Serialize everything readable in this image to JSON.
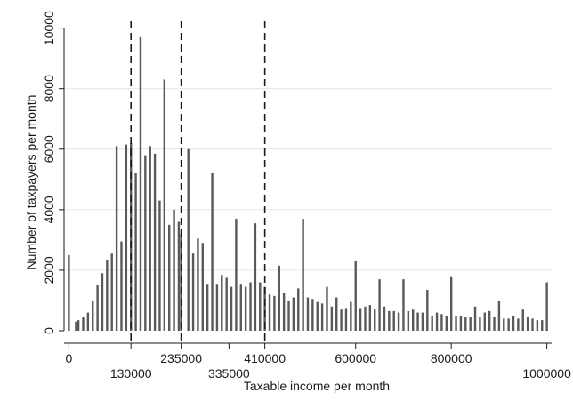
{
  "chart_data": {
    "type": "bar",
    "xlabel": "Taxable income per month",
    "ylabel": "Number of taxpayers per month",
    "xlim": [
      -10000,
      1010000
    ],
    "ylim": [
      0,
      10400
    ],
    "grid": true,
    "xticks_row1": [
      0,
      235000,
      410000,
      600000,
      800000
    ],
    "xtick_labels_row1": [
      "0",
      "235000",
      "410000",
      "600000",
      "800000"
    ],
    "xticks_row2": [
      130000,
      335000,
      1000000
    ],
    "xtick_labels_row2": [
      "130000",
      "335000",
      "1000000"
    ],
    "yticks": [
      0,
      2000,
      4000,
      6000,
      8000,
      10000
    ],
    "ytick_labels": [
      "0",
      "2000",
      "4000",
      "6000",
      "8000",
      "10000"
    ],
    "reference_lines_x": [
      130000,
      235000,
      410000
    ],
    "colors": {
      "bars": "#595959",
      "grid": "#e6e6e6",
      "axis": "#1a1a1a",
      "refline": "#1a1a1a"
    },
    "x": [
      0,
      15000,
      20000,
      30000,
      40000,
      50000,
      60000,
      70000,
      80000,
      90000,
      100000,
      110000,
      120000,
      130000,
      140000,
      150000,
      160000,
      170000,
      180000,
      190000,
      200000,
      210000,
      220000,
      230000,
      235000,
      250000,
      260000,
      270000,
      280000,
      290000,
      300000,
      310000,
      320000,
      330000,
      340000,
      350000,
      360000,
      370000,
      380000,
      390000,
      400000,
      410000,
      420000,
      430000,
      440000,
      450000,
      460000,
      470000,
      480000,
      490000,
      500000,
      510000,
      520000,
      530000,
      540000,
      550000,
      560000,
      570000,
      580000,
      590000,
      600000,
      610000,
      620000,
      630000,
      640000,
      650000,
      660000,
      670000,
      680000,
      690000,
      700000,
      710000,
      720000,
      730000,
      740000,
      750000,
      760000,
      770000,
      780000,
      790000,
      800000,
      810000,
      820000,
      830000,
      840000,
      850000,
      860000,
      870000,
      880000,
      890000,
      900000,
      910000,
      920000,
      930000,
      940000,
      950000,
      960000,
      970000,
      980000,
      990000,
      1000000
    ],
    "values": [
      2500,
      300,
      350,
      450,
      600,
      1000,
      1500,
      1900,
      2350,
      2550,
      6100,
      2950,
      6150,
      6200,
      5200,
      9700,
      5800,
      6100,
      5850,
      4300,
      8300,
      3500,
      4000,
      3600,
      3200,
      6000,
      2550,
      3050,
      2900,
      1550,
      5200,
      1550,
      1850,
      1750,
      1450,
      3700,
      1550,
      1450,
      1600,
      3550,
      1600,
      1450,
      1200,
      1150,
      2150,
      1250,
      1000,
      1100,
      1400,
      3700,
      1100,
      1050,
      950,
      900,
      1450,
      800,
      1100,
      700,
      750,
      950,
      2300,
      750,
      800,
      850,
      700,
      1700,
      800,
      650,
      650,
      600,
      1700,
      650,
      700,
      600,
      600,
      1350,
      500,
      600,
      550,
      500,
      1800,
      500,
      500,
      450,
      450,
      800,
      450,
      600,
      650,
      450,
      1000,
      400,
      400,
      500,
      400,
      700,
      450,
      400,
      350,
      350,
      1600
    ]
  }
}
